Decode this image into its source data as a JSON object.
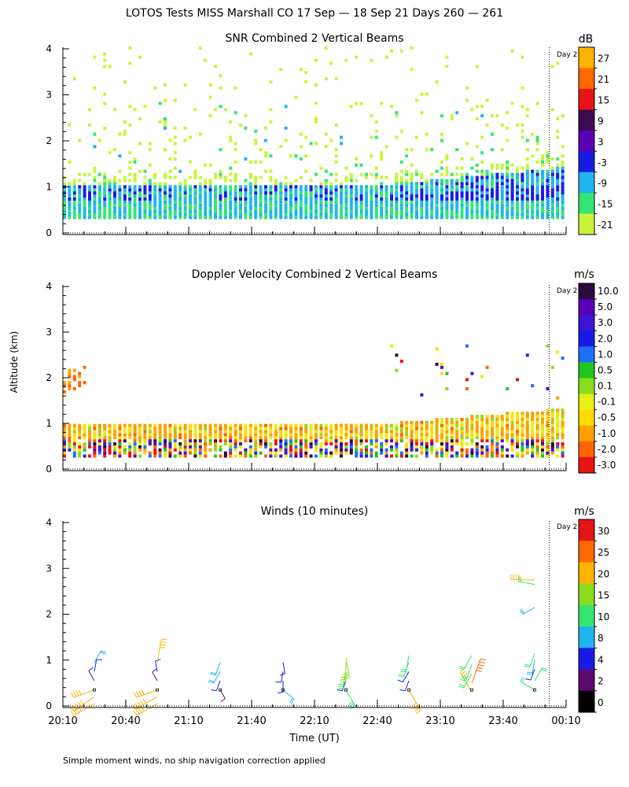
{
  "title": "LOTOS Tests MISS Marshall CO  17 Sep — 18 Sep 21 Days 260 — 261",
  "day_marker_label": "Day 2",
  "ylabel": "Altitude (km)",
  "xlabel": "Time (UT)",
  "footnote": "Simple moment winds, no ship navigation correction applied",
  "chart_data": [
    {
      "type": "heatmap",
      "title": "SNR Combined 2 Vertical Beams",
      "xlabel": "Time (UT)",
      "ylabel": "Altitude (km)",
      "xlim_minutes_after_20_10": [
        0,
        240
      ],
      "ylim": [
        0,
        4
      ],
      "y_ticks": [
        0,
        1,
        2,
        3,
        4
      ],
      "colorbar": {
        "unit": "dB",
        "levels": [
          "-21",
          "-15",
          "-9",
          "-3",
          "3",
          "9",
          "15",
          "21",
          "27"
        ],
        "colors": [
          "#c8f53a",
          "#33e673",
          "#21b4f0",
          "#1a1ae6",
          "#5a00b4",
          "#3c0a50",
          "#e61414",
          "#ff6a00",
          "#ffb400"
        ]
      },
      "day_boundary_minutes": 232,
      "features": [
        {
          "name": "strong boundary layer echo",
          "alt_from_km": 0.3,
          "alt_to_km": 1.0,
          "time_from_min": 0,
          "time_to_min": 150,
          "level_db": "-9 to -3"
        },
        {
          "name": "rising layer top",
          "alt_from_km": 1.0,
          "alt_to_km": 1.4,
          "time_from_min": 150,
          "time_to_min": 240,
          "level_db": "-9 to -3"
        },
        {
          "name": "scattered clear-air echoes",
          "alt_from_km": 1.5,
          "alt_to_km": 3.9,
          "level_db": "-21 to -9"
        }
      ]
    },
    {
      "type": "heatmap",
      "title": "Doppler Velocity Combined 2 Vertical Beams",
      "xlabel": "Time (UT)",
      "ylabel": "Altitude (km)",
      "xlim_minutes_after_20_10": [
        0,
        240
      ],
      "ylim": [
        0,
        4
      ],
      "y_ticks": [
        0,
        1,
        2,
        3,
        4
      ],
      "colorbar": {
        "unit": "m/s",
        "levels": [
          "10.0",
          "5.0",
          "3.0",
          "2.0",
          "1.0",
          "0.5",
          "0.1",
          "-0.1",
          "-0.5",
          "-1.0",
          "-2.0",
          "-3.0"
        ],
        "colors": [
          "#2d0a3c",
          "#5a00b4",
          "#3c14d2",
          "#1a1ae6",
          "#1e6eff",
          "#1ec81e",
          "#8cdc1e",
          "#e6f014",
          "#ffdc00",
          "#ffa000",
          "#ff6400",
          "#e61414"
        ]
      },
      "day_boundary_minutes": 232,
      "features": [
        {
          "name": "mostly downward motion layer",
          "alt_from_km": 0.6,
          "alt_to_km": 1.0,
          "level_ms": "-0.1 to -1.0"
        },
        {
          "name": "noisy near-surface band",
          "alt_from_km": 0.3,
          "alt_to_km": 0.6,
          "level_ms": "mixed"
        },
        {
          "name": "sparse upper echoes",
          "alt_from_km": 1.5,
          "alt_to_km": 2.7
        }
      ]
    },
    {
      "type": "wind_barbs",
      "title": "Winds (10 minutes)",
      "xlabel": "Time (UT)",
      "ylabel": "Altitude (km)",
      "x_tick_labels": [
        "20:10",
        "20:40",
        "21:10",
        "21:40",
        "22:10",
        "22:40",
        "23:10",
        "23:40",
        "00:10"
      ],
      "xlim_minutes_after_20_10": [
        0,
        240
      ],
      "ylim": [
        0,
        4
      ],
      "y_ticks": [
        0,
        1,
        2,
        3,
        4
      ],
      "colorbar": {
        "unit": "m/s",
        "levels": [
          "0",
          "2",
          "4",
          "8",
          "10",
          "15",
          "20",
          "25",
          "30"
        ],
        "colors": [
          "#000000",
          "#5a0a6e",
          "#1a1ae6",
          "#21b4f0",
          "#33e673",
          "#8cdc1e",
          "#ffb400",
          "#ff6a00",
          "#e61414"
        ]
      },
      "day_boundary_minutes": 232,
      "profiles_at_minutes": [
        15,
        45,
        75,
        105,
        135,
        165,
        195,
        225
      ],
      "barbs": [
        {
          "t": 15,
          "alt": 0.05,
          "speed": 22,
          "dir": 240
        },
        {
          "t": 15,
          "alt": 0.2,
          "speed": 24,
          "dir": 235
        },
        {
          "t": 15,
          "alt": 0.35,
          "speed": 20,
          "dir": 250
        },
        {
          "t": 15,
          "alt": 0.55,
          "speed": 5,
          "dir": 330
        },
        {
          "t": 15,
          "alt": 0.75,
          "speed": 6,
          "dir": 10
        },
        {
          "t": 15,
          "alt": 0.95,
          "speed": 8,
          "dir": 30
        },
        {
          "t": 45,
          "alt": 0.05,
          "speed": 22,
          "dir": 240
        },
        {
          "t": 45,
          "alt": 0.2,
          "speed": 24,
          "dir": 240
        },
        {
          "t": 45,
          "alt": 0.35,
          "speed": 20,
          "dir": 250
        },
        {
          "t": 45,
          "alt": 0.55,
          "speed": 3,
          "dir": 330
        },
        {
          "t": 45,
          "alt": 0.75,
          "speed": 4,
          "dir": 350
        },
        {
          "t": 45,
          "alt": 0.95,
          "speed": 22,
          "dir": 10
        },
        {
          "t": 75,
          "alt": 0.35,
          "speed": 3,
          "dir": 150
        },
        {
          "t": 75,
          "alt": 0.55,
          "speed": 4,
          "dir": 200
        },
        {
          "t": 75,
          "alt": 0.75,
          "speed": 8,
          "dir": 210
        },
        {
          "t": 75,
          "alt": 0.95,
          "speed": 8,
          "dir": 200
        },
        {
          "t": 105,
          "alt": 0.35,
          "speed": 9,
          "dir": 130
        },
        {
          "t": 105,
          "alt": 0.55,
          "speed": 5,
          "dir": 180
        },
        {
          "t": 105,
          "alt": 0.75,
          "speed": 4,
          "dir": 190
        },
        {
          "t": 105,
          "alt": 0.95,
          "speed": 5,
          "dir": 170
        },
        {
          "t": 135,
          "alt": 0.35,
          "speed": 14,
          "dir": 150
        },
        {
          "t": 135,
          "alt": 0.55,
          "speed": 4,
          "dir": 200
        },
        {
          "t": 135,
          "alt": 0.75,
          "speed": 13,
          "dir": 190
        },
        {
          "t": 135,
          "alt": 0.95,
          "speed": 16,
          "dir": 180
        },
        {
          "t": 135,
          "alt": 1.05,
          "speed": 17,
          "dir": 170
        },
        {
          "t": 165,
          "alt": 0.35,
          "speed": 22,
          "dir": 150
        },
        {
          "t": 165,
          "alt": 0.55,
          "speed": 4,
          "dir": 200
        },
        {
          "t": 165,
          "alt": 0.75,
          "speed": 6,
          "dir": 210
        },
        {
          "t": 165,
          "alt": 0.95,
          "speed": 11,
          "dir": 200
        },
        {
          "t": 165,
          "alt": 1.1,
          "speed": 12,
          "dir": 190
        },
        {
          "t": 195,
          "alt": 0.3,
          "speed": 22,
          "dir": 330
        },
        {
          "t": 195,
          "alt": 0.5,
          "speed": 25,
          "dir": 20
        },
        {
          "t": 195,
          "alt": 0.7,
          "speed": 12,
          "dir": 210
        },
        {
          "t": 195,
          "alt": 0.9,
          "speed": 13,
          "dir": 200
        },
        {
          "t": 195,
          "alt": 1.1,
          "speed": 12,
          "dir": 210
        },
        {
          "t": 225,
          "alt": 0.35,
          "speed": 12,
          "dir": 300
        },
        {
          "t": 225,
          "alt": 0.55,
          "speed": 10,
          "dir": 30
        },
        {
          "t": 225,
          "alt": 0.8,
          "speed": 5,
          "dir": 200
        },
        {
          "t": 225,
          "alt": 1.0,
          "speed": 9,
          "dir": 190
        },
        {
          "t": 225,
          "alt": 1.15,
          "speed": 10,
          "dir": 200
        },
        {
          "t": 225,
          "alt": 2.15,
          "speed": 8,
          "dir": 240
        },
        {
          "t": 225,
          "alt": 2.65,
          "speed": 12,
          "dir": 280
        },
        {
          "t": 225,
          "alt": 2.75,
          "speed": 22,
          "dir": 270
        }
      ]
    }
  ]
}
